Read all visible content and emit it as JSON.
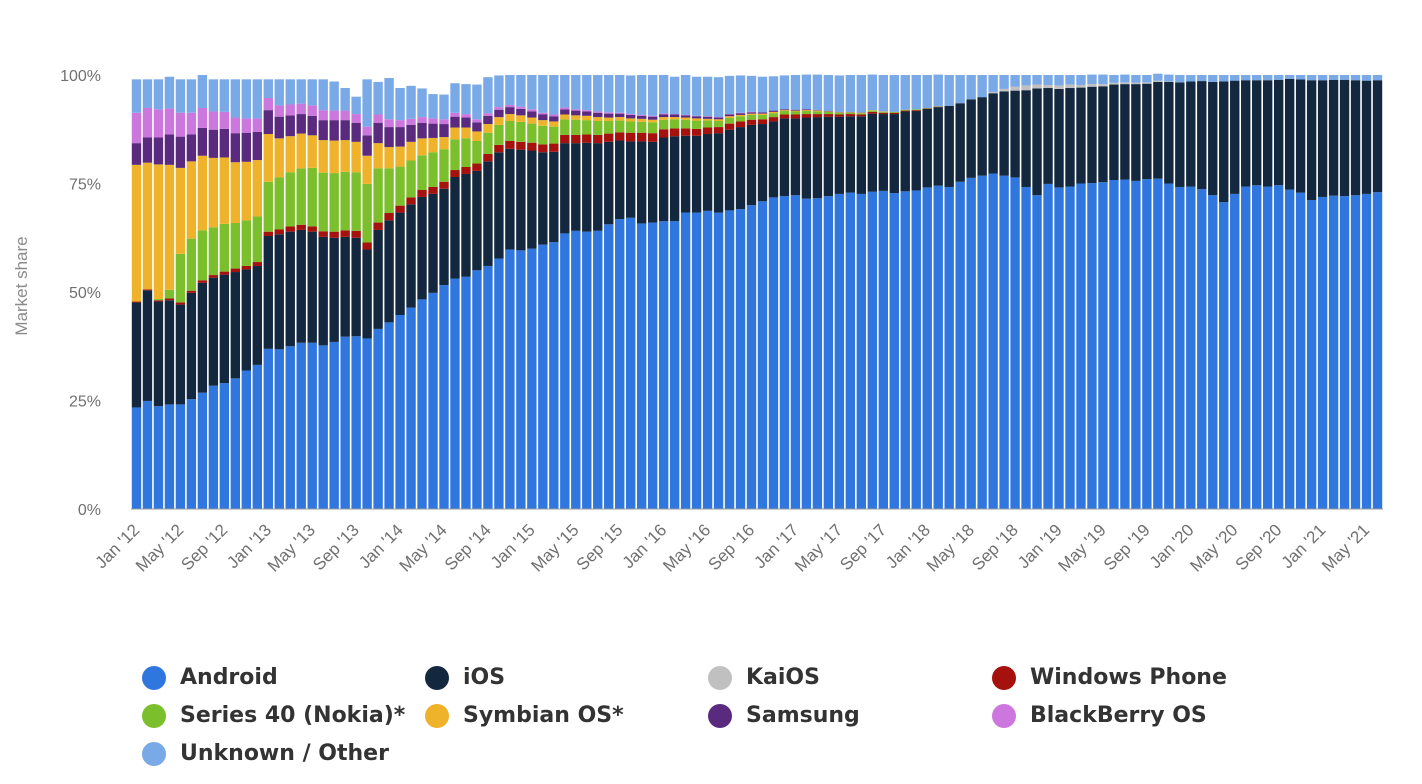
{
  "chart_data": {
    "type": "bar",
    "stacked": true,
    "ylabel": "Market share",
    "ylim": [
      0,
      100
    ],
    "yticks": [
      "0%",
      "25%",
      "50%",
      "75%",
      "100%"
    ],
    "x_tick_labels": [
      "Jan '12",
      "May '12",
      "Sep '12",
      "Jan '13",
      "May '13",
      "Sep '13",
      "Jan '14",
      "May '14",
      "Sep '14",
      "Jan '15",
      "May '15",
      "Sep '15",
      "Jan '16",
      "May '16",
      "Sep '16",
      "Jan '17",
      "May '17",
      "Sep '17",
      "Jan '18",
      "May '18",
      "Sep '18",
      "Jan '19",
      "May '19",
      "Sep '19",
      "Jan '20",
      "May '20",
      "Sep '20",
      "Jan '21",
      "May '21"
    ],
    "categories": [
      "Jan '12",
      "Feb '12",
      "Mar '12",
      "Apr '12",
      "May '12",
      "Jun '12",
      "Jul '12",
      "Aug '12",
      "Sep '12",
      "Oct '12",
      "Nov '12",
      "Dec '12",
      "Jan '13",
      "Feb '13",
      "Mar '13",
      "Apr '13",
      "May '13",
      "Jun '13",
      "Jul '13",
      "Aug '13",
      "Sep '13",
      "Oct '13",
      "Nov '13",
      "Dec '13",
      "Jan '14",
      "Feb '14",
      "Mar '14",
      "Apr '14",
      "May '14",
      "Jun '14",
      "Jul '14",
      "Aug '14",
      "Sep '14",
      "Oct '14",
      "Nov '14",
      "Dec '14",
      "Jan '15",
      "Feb '15",
      "Mar '15",
      "Apr '15",
      "May '15",
      "Jun '15",
      "Jul '15",
      "Aug '15",
      "Sep '15",
      "Oct '15",
      "Nov '15",
      "Dec '15",
      "Jan '16",
      "Feb '16",
      "Mar '16",
      "Apr '16",
      "May '16",
      "Jun '16",
      "Jul '16",
      "Aug '16",
      "Sep '16",
      "Oct '16",
      "Nov '16",
      "Dec '16",
      "Jan '17",
      "Feb '17",
      "Mar '17",
      "Apr '17",
      "May '17",
      "Jun '17",
      "Jul '17",
      "Aug '17",
      "Sep '17",
      "Oct '17",
      "Nov '17",
      "Dec '17",
      "Jan '18",
      "Feb '18",
      "Mar '18",
      "Apr '18",
      "May '18",
      "Jun '18",
      "Jul '18",
      "Aug '18",
      "Sep '18",
      "Oct '18",
      "Nov '18",
      "Dec '18",
      "Jan '19",
      "Feb '19",
      "Mar '19",
      "Apr '19",
      "May '19",
      "Jun '19",
      "Jul '19",
      "Aug '19",
      "Sep '19",
      "Oct '19",
      "Nov '19",
      "Dec '19",
      "Jan '20",
      "Feb '20",
      "Mar '20",
      "Apr '20",
      "May '20",
      "Jun '20",
      "Jul '20",
      "Aug '20",
      "Sep '20",
      "Oct '20",
      "Nov '20",
      "Dec '20",
      "Jan '21",
      "Feb '21",
      "Mar '21",
      "Apr '21",
      "May '21",
      "Jun '21"
    ],
    "series": [
      {
        "name": "Android",
        "color": "#2f76df",
        "values": [
          23.4,
          24.9,
          23.7,
          24.1,
          24.1,
          25.3,
          26.8,
          28.4,
          29.0,
          30.1,
          31.9,
          33.2,
          36.9,
          36.8,
          37.5,
          38.3,
          38.3,
          37.7,
          38.5,
          39.7,
          39.8,
          39.3,
          41.5,
          43.0,
          44.7,
          46.4,
          48.3,
          49.8,
          51.6,
          53.1,
          53.5,
          55.0,
          56.0,
          57.7,
          59.8,
          59.6,
          60.0,
          60.9,
          61.5,
          63.5,
          64.1,
          63.9,
          64.1,
          65.6,
          66.8,
          67.1,
          65.8,
          66.0,
          66.3,
          66.3,
          68.3,
          68.3,
          68.7,
          68.3,
          68.8,
          69.1,
          70.0,
          70.9,
          71.8,
          72.1,
          72.3,
          71.5,
          71.6,
          72.1,
          72.6,
          72.9,
          72.6,
          73.1,
          73.3,
          72.8,
          73.2,
          73.4,
          74.1,
          74.5,
          74.2,
          75.4,
          76.3,
          76.8,
          77.3,
          76.8,
          76.4,
          74.2,
          72.3,
          74.9,
          74.1,
          74.3,
          75.0,
          75.1,
          75.3,
          75.8,
          75.9,
          75.6,
          76.0,
          76.1,
          75.0,
          74.2,
          74.3,
          73.7,
          72.3,
          70.7,
          72.6,
          74.3,
          74.6,
          74.3,
          74.6,
          73.6,
          72.9,
          71.2,
          71.9,
          72.2,
          72.1,
          72.3,
          72.6,
          73.0
        ]
      },
      {
        "name": "iOS",
        "color": "#13283e",
        "values": [
          24.2,
          25.5,
          24.1,
          24.0,
          23.0,
          24.5,
          25.3,
          24.9,
          25.0,
          24.5,
          23.3,
          22.8,
          26.0,
          26.5,
          26.4,
          26.0,
          25.6,
          25.0,
          24.0,
          23.0,
          22.7,
          20.5,
          22.8,
          23.5,
          23.6,
          23.8,
          23.6,
          22.8,
          22.2,
          23.4,
          23.7,
          22.9,
          24.1,
          24.5,
          23.2,
          23.2,
          22.6,
          21.3,
          20.8,
          20.8,
          20.2,
          20.5,
          20.2,
          19.0,
          18.1,
          17.6,
          18.9,
          18.6,
          19.3,
          19.6,
          17.7,
          17.7,
          17.7,
          18.3,
          18.6,
          18.9,
          18.5,
          17.8,
          17.5,
          17.9,
          17.7,
          18.7,
          18.7,
          18.3,
          17.8,
          17.6,
          17.9,
          18.0,
          17.7,
          18.2,
          18.4,
          18.3,
          18.1,
          18.1,
          18.7,
          18.1,
          18.1,
          18.1,
          18.5,
          19.4,
          20.0,
          22.3,
          24.6,
          22.1,
          22.7,
          22.7,
          22.1,
          22.2,
          22.1,
          22.0,
          22.0,
          22.3,
          22.0,
          22.3,
          23.4,
          24.1,
          24.2,
          24.9,
          26.1,
          27.8,
          26.1,
          24.5,
          24.2,
          24.5,
          24.3,
          25.5,
          26.1,
          27.6,
          26.9,
          26.7,
          26.8,
          26.5,
          26.1,
          25.8
        ]
      },
      {
        "name": "KaiOS",
        "color": "#c0c0c0",
        "values": [
          0,
          0,
          0,
          0,
          0,
          0,
          0,
          0,
          0,
          0,
          0,
          0,
          0,
          0,
          0,
          0,
          0,
          0,
          0,
          0,
          0,
          0,
          0,
          0,
          0,
          0,
          0,
          0,
          0,
          0,
          0,
          0,
          0,
          0,
          0,
          0,
          0,
          0,
          0,
          0,
          0,
          0,
          0,
          0,
          0,
          0,
          0,
          0,
          0,
          0,
          0,
          0,
          0,
          0,
          0,
          0,
          0,
          0,
          0,
          0,
          0,
          0,
          0,
          0,
          0,
          0,
          0,
          0,
          0,
          0,
          0,
          0,
          0,
          0,
          0,
          0,
          0,
          0,
          0.3,
          0.6,
          0.9,
          1.1,
          0.9,
          0.7,
          0.8,
          0.8,
          0.6,
          0.6,
          0.5,
          0.4,
          0.4,
          0.3,
          0.3,
          0.3,
          0.1,
          0,
          0,
          0,
          0,
          0,
          0,
          0,
          0,
          0,
          0,
          0,
          0,
          0,
          0,
          0,
          0,
          0,
          0,
          0
        ]
      },
      {
        "name": "Windows Phone",
        "color": "#a5120e",
        "values": [
          0.2,
          0.2,
          0.3,
          0.4,
          0.5,
          0.5,
          0.6,
          0.6,
          0.7,
          0.8,
          0.8,
          0.9,
          1.0,
          1.1,
          1.2,
          1.2,
          1.2,
          1.3,
          1.4,
          1.5,
          1.6,
          1.6,
          1.7,
          1.7,
          1.6,
          1.6,
          1.6,
          1.6,
          1.6,
          1.6,
          1.6,
          1.7,
          1.7,
          1.7,
          1.8,
          1.8,
          1.8,
          1.8,
          1.9,
          1.9,
          1.9,
          1.9,
          1.9,
          1.9,
          1.9,
          2.0,
          2.0,
          2.0,
          1.9,
          1.8,
          1.7,
          1.6,
          1.5,
          1.4,
          1.4,
          1.3,
          1.2,
          1.1,
          1.0,
          0.9,
          0.9,
          0.8,
          0.7,
          0.6,
          0.5,
          0.5,
          0.4,
          0.4,
          0.3,
          0.3,
          0.2,
          0.2,
          0.1,
          0.1,
          0,
          0,
          0,
          0,
          0,
          0,
          0,
          0,
          0,
          0,
          0,
          0,
          0,
          0,
          0,
          0,
          0,
          0,
          0,
          0,
          0,
          0,
          0,
          0,
          0,
          0,
          0,
          0,
          0,
          0,
          0,
          0,
          0,
          0,
          0,
          0,
          0,
          0,
          0,
          0
        ]
      },
      {
        "name": "Series 40 (Nokia)*",
        "color": "#7cbf2c",
        "values": [
          0,
          0,
          0.3,
          2.0,
          11.2,
          12.0,
          11.5,
          11.0,
          11.0,
          10.5,
          10.5,
          10.5,
          11.5,
          12.0,
          12.5,
          13.0,
          13.5,
          13.5,
          13.5,
          13.5,
          13.5,
          13.5,
          12.5,
          10.3,
          9.0,
          8.5,
          8.0,
          8.0,
          7.5,
          7.1,
          6.6,
          5.2,
          4.9,
          4.6,
          4.6,
          4.6,
          4.4,
          4.3,
          3.9,
          3.6,
          3.5,
          3.3,
          3.2,
          2.9,
          2.7,
          2.6,
          2.5,
          2.5,
          2.2,
          2.1,
          2.0,
          1.9,
          1.6,
          1.4,
          1.3,
          1.2,
          1.1,
          1.0,
          0.9,
          0.8,
          0.7,
          0.7,
          0.6,
          0.5,
          0.4,
          0.3,
          0.3,
          0.3,
          0.2,
          0.2,
          0.2,
          0.2,
          0.1,
          0.1,
          0,
          0,
          0,
          0,
          0,
          0,
          0,
          0,
          0,
          0,
          0,
          0,
          0,
          0,
          0,
          0,
          0,
          0,
          0,
          0,
          0,
          0,
          0,
          0,
          0,
          0,
          0,
          0,
          0,
          0,
          0,
          0,
          0,
          0,
          0,
          0,
          0,
          0,
          0,
          0
        ]
      },
      {
        "name": "Symbian OS*",
        "color": "#efb32b",
        "values": [
          31.5,
          29.2,
          31.0,
          28.8,
          19.8,
          17.8,
          17.2,
          16.0,
          15.3,
          14.0,
          13.5,
          13.0,
          11.0,
          9.0,
          8.3,
          8.0,
          7.5,
          7.5,
          7.5,
          7.3,
          7.0,
          6.5,
          5.8,
          4.9,
          4.6,
          4.3,
          3.9,
          3.3,
          2.8,
          2.7,
          2.5,
          2.2,
          2.0,
          1.8,
          1.6,
          1.5,
          1.4,
          1.3,
          1.2,
          1.1,
          1.0,
          1.0,
          0.9,
          0.8,
          0.8,
          0.7,
          0.7,
          0.6,
          0.6,
          0.5,
          0.5,
          0.5,
          0.4,
          0.4,
          0.4,
          0.3,
          0.3,
          0.3,
          0.3,
          0.2,
          0.2,
          0.2,
          0.2,
          0.1,
          0.1,
          0.1,
          0.1,
          0.1,
          0.1,
          0,
          0,
          0,
          0,
          0,
          0,
          0,
          0,
          0,
          0,
          0,
          0,
          0,
          0,
          0,
          0,
          0,
          0,
          0,
          0,
          0,
          0,
          0,
          0,
          0,
          0,
          0,
          0,
          0,
          0,
          0,
          0,
          0,
          0,
          0,
          0,
          0,
          0,
          0,
          0,
          0,
          0,
          0,
          0,
          0
        ]
      },
      {
        "name": "Samsung",
        "color": "#5a2a7e",
        "values": [
          5.0,
          5.8,
          6.2,
          7.0,
          7.2,
          6.2,
          6.4,
          6.5,
          6.6,
          6.7,
          6.7,
          6.5,
          5.5,
          5.0,
          4.8,
          4.5,
          4.5,
          4.6,
          4.7,
          4.6,
          4.4,
          4.7,
          4.7,
          4.6,
          4.5,
          3.9,
          3.6,
          3.3,
          3.0,
          2.5,
          2.3,
          2.1,
          1.9,
          1.7,
          1.6,
          1.5,
          1.4,
          1.3,
          1.2,
          1.2,
          1.1,
          1.0,
          1.0,
          0.9,
          0.8,
          0.8,
          0.7,
          0.7,
          0.6,
          0.6,
          0.5,
          0.5,
          0.5,
          0.4,
          0.4,
          0.4,
          0.3,
          0.3,
          0.3,
          0.2,
          0.2,
          0.2,
          0.1,
          0.1,
          0.1,
          0.1,
          0.1,
          0,
          0,
          0,
          0,
          0,
          0,
          0,
          0,
          0,
          0,
          0,
          0,
          0,
          0,
          0,
          0,
          0,
          0,
          0,
          0,
          0,
          0,
          0,
          0,
          0,
          0,
          0,
          0,
          0,
          0,
          0,
          0,
          0,
          0,
          0,
          0,
          0,
          0,
          0,
          0,
          0,
          0,
          0,
          0,
          0,
          0,
          0
        ]
      },
      {
        "name": "BlackBerry OS",
        "color": "#cc77dd",
        "values": [
          7.0,
          6.8,
          6.5,
          6.0,
          5.5,
          5.0,
          4.6,
          4.2,
          3.9,
          3.6,
          3.3,
          3.1,
          2.8,
          2.6,
          2.5,
          2.4,
          2.4,
          2.3,
          2.2,
          2.2,
          2.0,
          2.0,
          1.9,
          1.8,
          1.6,
          1.4,
          1.3,
          1.2,
          1.1,
          0.9,
          0.8,
          0.7,
          0.6,
          0.6,
          0.5,
          0.5,
          0.5,
          0.4,
          0.4,
          0.4,
          0.3,
          0.3,
          0.3,
          0.3,
          0.2,
          0.2,
          0.2,
          0.2,
          0.2,
          0.1,
          0.1,
          0.1,
          0.1,
          0.1,
          0.1,
          0.1,
          0.1,
          0,
          0,
          0,
          0,
          0,
          0,
          0,
          0,
          0,
          0,
          0,
          0,
          0,
          0,
          0,
          0,
          0,
          0,
          0,
          0,
          0,
          0,
          0,
          0,
          0,
          0,
          0,
          0,
          0,
          0,
          0,
          0,
          0,
          0,
          0,
          0,
          0,
          0,
          0,
          0,
          0,
          0,
          0,
          0,
          0,
          0,
          0,
          0,
          0,
          0,
          0,
          0,
          0,
          0,
          0,
          0,
          0
        ]
      },
      {
        "name": "Unknown / Other",
        "color": "#79a9e6",
        "values": [
          7.7,
          6.6,
          6.9,
          7.3,
          7.7,
          7.7,
          7.6,
          7.4,
          7.5,
          8.8,
          9.0,
          9.0,
          4.3,
          6.0,
          5.8,
          5.6,
          6.0,
          7.1,
          6.7,
          5.2,
          4.0,
          10.9,
          7.5,
          9.5,
          7.4,
          7.6,
          6.6,
          5.6,
          5.7,
          6.8,
          6.9,
          8.0,
          8.3,
          7.3,
          6.9,
          7.3,
          7.9,
          8.7,
          9.1,
          7.5,
          7.9,
          8.1,
          8.4,
          8.6,
          8.7,
          8.9,
          9.2,
          9.4,
          8.9,
          8.6,
          9.2,
          9.0,
          9.1,
          9.2,
          8.8,
          8.6,
          8.3,
          8.2,
          7.9,
          7.8,
          8.0,
          8.0,
          8.2,
          8.3,
          8.4,
          8.5,
          8.6,
          8.2,
          8.4,
          8.5,
          8.0,
          7.9,
          7.6,
          7.3,
          7.1,
          6.5,
          5.6,
          5.1,
          3.9,
          3.2,
          2.7,
          2.4,
          2.2,
          2.3,
          2.4,
          2.2,
          2.3,
          2.2,
          2.2,
          1.8,
          1.8,
          1.8,
          1.7,
          1.6,
          1.6,
          1.7,
          1.5,
          1.4,
          1.6,
          1.5,
          1.3,
          1.2,
          1.2,
          1.2,
          1.1,
          0.9,
          1.0,
          1.2,
          1.2,
          1.1,
          1.1,
          1.2,
          1.3,
          1.2
        ]
      }
    ]
  },
  "legend": {
    "items": [
      {
        "label": "Android",
        "color": "#2f76df"
      },
      {
        "label": "iOS",
        "color": "#13283e"
      },
      {
        "label": "KaiOS",
        "color": "#c0c0c0"
      },
      {
        "label": "Windows Phone",
        "color": "#a5120e"
      },
      {
        "label": "Series 40 (Nokia)*",
        "color": "#7cbf2c"
      },
      {
        "label": "Symbian OS*",
        "color": "#efb32b"
      },
      {
        "label": "Samsung",
        "color": "#5a2a7e"
      },
      {
        "label": "BlackBerry OS",
        "color": "#cc77dd"
      },
      {
        "label": "Unknown / Other",
        "color": "#79a9e6"
      }
    ]
  }
}
